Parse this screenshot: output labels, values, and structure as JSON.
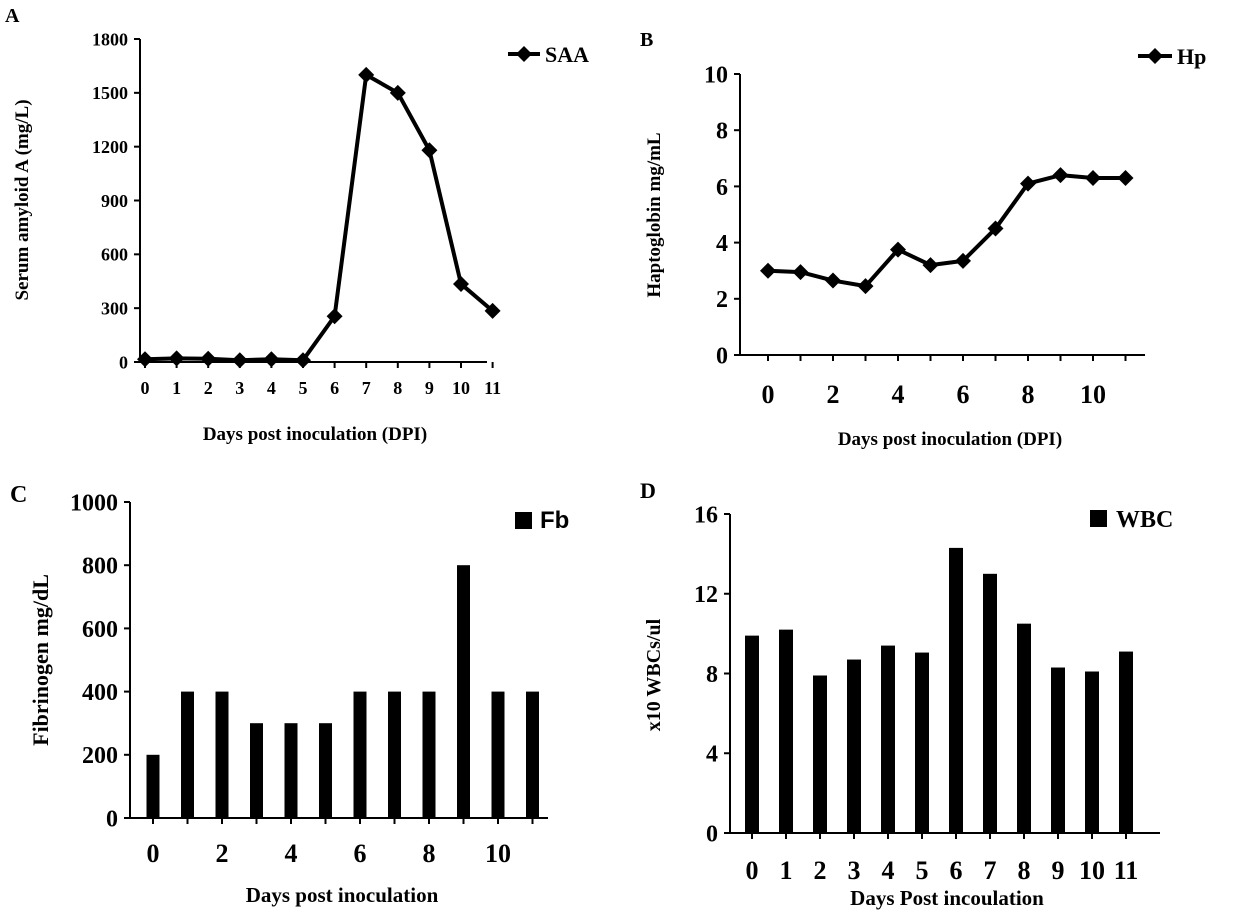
{
  "chart_data": [
    {
      "panel": "A",
      "type": "line",
      "x": [
        0,
        1,
        2,
        3,
        4,
        5,
        6,
        7,
        8,
        9,
        10,
        11
      ],
      "x_tick_labels": [
        "0",
        "1",
        "2",
        "3",
        "4",
        "5",
        "6",
        "7",
        "8",
        "9",
        "10",
        "11"
      ],
      "series": [
        {
          "name": "SAA",
          "values": [
            15,
            20,
            18,
            10,
            15,
            10,
            255,
            1600,
            1500,
            1180,
            435,
            285
          ]
        }
      ],
      "xlabel": "Days post inoculation (DPI)",
      "ylabel": "Serum amyloid A (mg/L)",
      "ylim": [
        0,
        1800
      ],
      "y_ticks": [
        0,
        300,
        600,
        900,
        1200,
        1500,
        1800
      ],
      "grid": false,
      "legend": "top-right",
      "color": "#000000"
    },
    {
      "panel": "B",
      "type": "line",
      "x": [
        0,
        1,
        2,
        3,
        4,
        5,
        6,
        7,
        8,
        9,
        10,
        11
      ],
      "x_tick_labels": [
        "0",
        "2",
        "4",
        "6",
        "8",
        "10"
      ],
      "series": [
        {
          "name": "Hp",
          "values": [
            3.0,
            2.95,
            2.65,
            2.45,
            3.75,
            3.2,
            3.35,
            4.5,
            6.1,
            6.4,
            6.3,
            6.3
          ]
        }
      ],
      "xlabel": "Days post inoculation (DPI)",
      "ylabel": "Haptoglobin mg/mL",
      "ylim": [
        0,
        10
      ],
      "y_ticks": [
        0,
        2,
        4,
        6,
        8,
        10
      ],
      "grid": false,
      "legend": "top-right",
      "color": "#000000"
    },
    {
      "panel": "C",
      "type": "bar",
      "categories": [
        "0",
        "1",
        "2",
        "3",
        "4",
        "5",
        "6",
        "7",
        "8",
        "9",
        "10",
        "11"
      ],
      "x_tick_labels": [
        "0",
        "2",
        "4",
        "6",
        "8",
        "10"
      ],
      "series": [
        {
          "name": "Fb",
          "values": [
            200,
            400,
            400,
            300,
            300,
            300,
            400,
            400,
            400,
            800,
            400,
            400
          ]
        }
      ],
      "xlabel": "Days post inoculation",
      "ylabel": "Fibrinogen mg/dL",
      "ylim": [
        0,
        1000
      ],
      "y_ticks": [
        0,
        200,
        400,
        600,
        800,
        1000
      ],
      "grid": false,
      "legend": "top-right",
      "color": "#000000"
    },
    {
      "panel": "D",
      "type": "bar",
      "categories": [
        "0",
        "1",
        "2",
        "3",
        "4",
        "5",
        "6",
        "7",
        "8",
        "9",
        "10",
        "11"
      ],
      "x_tick_labels": [
        "0",
        "1",
        "2",
        "3",
        "4",
        "5",
        "6",
        "7",
        "8",
        "9",
        "10",
        "11"
      ],
      "series": [
        {
          "name": "WBC",
          "values": [
            9.9,
            10.2,
            7.9,
            8.7,
            9.4,
            9.05,
            14.3,
            13.0,
            10.5,
            8.3,
            8.1,
            9.1
          ]
        }
      ],
      "xlabel": "Days Post incoulation",
      "ylabel": "x10 WBCs/ul",
      "ylim": [
        0,
        16
      ],
      "y_ticks": [
        0,
        4,
        8,
        12,
        16
      ],
      "grid": false,
      "legend": "top-right",
      "color": "#000000"
    }
  ]
}
